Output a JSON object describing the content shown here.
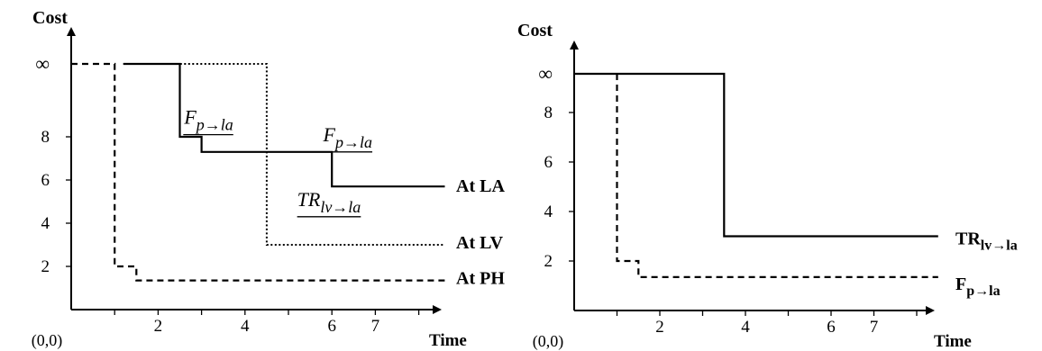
{
  "chart_data": [
    {
      "type": "line",
      "ylabel": "Cost",
      "xlabel": "Time",
      "origin_label": "(0,0)",
      "x_tick_labels": [
        "2",
        "4",
        "6",
        "7"
      ],
      "y_tick_labels": [
        "2",
        "4",
        "6",
        "8"
      ],
      "infinity_label": "∞",
      "series": [
        {
          "name": "At LA",
          "style": "solid",
          "points": [
            [
              1.2,
              "inf"
            ],
            [
              2.5,
              "inf"
            ],
            [
              2.5,
              8.0
            ],
            [
              3.0,
              8.0
            ],
            [
              3.0,
              7.3
            ],
            [
              6.0,
              7.3
            ],
            [
              6.0,
              5.7
            ],
            [
              8.6,
              5.7
            ]
          ]
        },
        {
          "name": "At LV",
          "style": "dotted",
          "points": [
            [
              1.2,
              "inf"
            ],
            [
              4.5,
              "inf"
            ],
            [
              4.5,
              3.0
            ],
            [
              8.6,
              3.0
            ]
          ]
        },
        {
          "name": "At PH",
          "style": "dashed",
          "points": [
            [
              0.0,
              "inf"
            ],
            [
              1.0,
              "inf"
            ],
            [
              1.0,
              2.0
            ],
            [
              1.5,
              2.0
            ],
            [
              1.5,
              1.35
            ],
            [
              8.6,
              1.35
            ]
          ]
        }
      ],
      "annotations": [
        {
          "main": "F",
          "sub": "p→la",
          "x": 2.6,
          "y": 8.6
        },
        {
          "main": "F",
          "sub": "p→la",
          "x": 5.8,
          "y": 7.8
        },
        {
          "main": "TR",
          "sub": "lv→la",
          "x": 5.2,
          "y": 4.8
        }
      ]
    },
    {
      "type": "line",
      "ylabel": "Cost",
      "xlabel": "Time",
      "origin_label": "(0,0)",
      "x_tick_labels": [
        "2",
        "4",
        "6",
        "7"
      ],
      "y_tick_labels": [
        "2",
        "4",
        "6",
        "8"
      ],
      "infinity_label": "∞",
      "series": [
        {
          "name": "TR",
          "name_sub": "lv→la",
          "style": "solid",
          "points": [
            [
              0.0,
              "inf"
            ],
            [
              3.5,
              "inf"
            ],
            [
              3.5,
              3.0
            ],
            [
              8.5,
              3.0
            ]
          ]
        },
        {
          "name": "F",
          "name_sub": "p→la",
          "style": "dashed",
          "points": [
            [
              1.0,
              "inf"
            ],
            [
              1.0,
              2.0
            ],
            [
              1.5,
              2.0
            ],
            [
              1.5,
              1.35
            ],
            [
              8.5,
              1.35
            ]
          ]
        }
      ]
    }
  ]
}
